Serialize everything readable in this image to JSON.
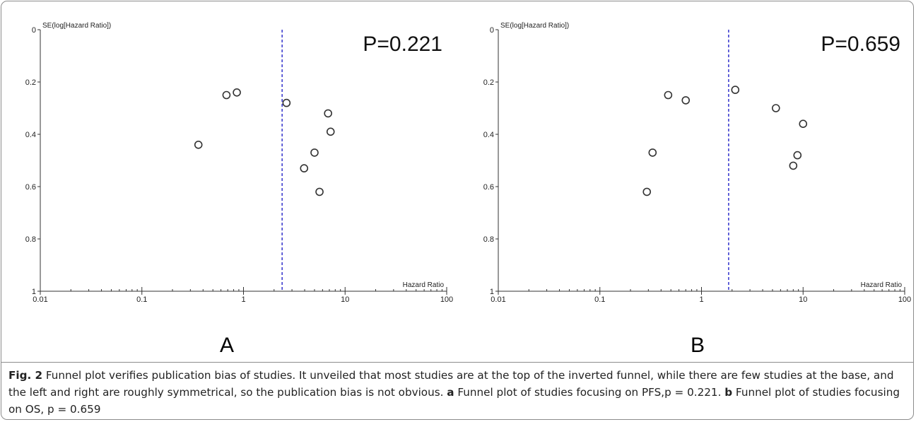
{
  "panels": [
    {
      "letter": "A",
      "p_label": "P=0.221",
      "y_axis_label": "SE(log[Hazard Ratio])",
      "x_axis_label": "Hazard Ratio"
    },
    {
      "letter": "B",
      "p_label": "P=0.659",
      "y_axis_label": "SE(log[Hazard Ratio])",
      "x_axis_label": "Hazard Ratio"
    }
  ],
  "caption": {
    "fig_label": "Fig. 2",
    "text": " Funnel plot verifies publication bias of studies. It unveiled that most studies are at the top of the inverted funnel, while there are few studies at the base, and the left and right are roughly symmetrical, so the publication bias is not obvious. ",
    "a_label": "a",
    "a_text": " Funnel plot of studies focusing on PFS,p = 0.221. ",
    "b_label": "b",
    "b_text": " Funnel plot of studies focusing on OS, p = 0.659"
  },
  "chart_data": [
    {
      "type": "scatter",
      "panel": "A",
      "annotation": "P=0.221",
      "xlabel": "Hazard Ratio",
      "ylabel": "SE(log[Hazard Ratio])",
      "x_scale": "log",
      "xlim": [
        0.01,
        100
      ],
      "ylim": [
        0,
        1
      ],
      "y_inverted": true,
      "x_ticks": [
        "0.01",
        "0.1",
        "1",
        "10",
        "100"
      ],
      "y_ticks": [
        "0",
        "0.2",
        "0.4",
        "0.6",
        "0.8",
        "1"
      ],
      "pooled_line": {
        "x": 2.4,
        "style": "dashed",
        "color": "#3030cc"
      },
      "points": [
        {
          "x": 0.36,
          "y": 0.44
        },
        {
          "x": 0.68,
          "y": 0.25
        },
        {
          "x": 0.86,
          "y": 0.24
        },
        {
          "x": 2.65,
          "y": 0.28
        },
        {
          "x": 6.8,
          "y": 0.32
        },
        {
          "x": 7.2,
          "y": 0.39
        },
        {
          "x": 5.0,
          "y": 0.47
        },
        {
          "x": 3.95,
          "y": 0.53
        },
        {
          "x": 5.6,
          "y": 0.62
        }
      ],
      "point_color": "#333333"
    },
    {
      "type": "scatter",
      "panel": "B",
      "annotation": "P=0.659",
      "xlabel": "Hazard Ratio",
      "ylabel": "SE(log[Hazard Ratio])",
      "x_scale": "log",
      "xlim": [
        0.01,
        100
      ],
      "ylim": [
        0,
        1
      ],
      "y_inverted": true,
      "x_ticks": [
        "0.01",
        "0.1",
        "1",
        "10",
        "100"
      ],
      "y_ticks": [
        "0",
        "0.2",
        "0.4",
        "0.6",
        "0.8",
        "1"
      ],
      "pooled_line": {
        "x": 1.85,
        "style": "dashed",
        "color": "#3030cc"
      },
      "points": [
        {
          "x": 0.47,
          "y": 0.25
        },
        {
          "x": 0.7,
          "y": 0.27
        },
        {
          "x": 2.15,
          "y": 0.23
        },
        {
          "x": 5.4,
          "y": 0.3
        },
        {
          "x": 10.0,
          "y": 0.36
        },
        {
          "x": 8.8,
          "y": 0.48
        },
        {
          "x": 8.0,
          "y": 0.52
        },
        {
          "x": 0.33,
          "y": 0.47
        },
        {
          "x": 0.29,
          "y": 0.62
        }
      ],
      "point_color": "#333333"
    }
  ]
}
